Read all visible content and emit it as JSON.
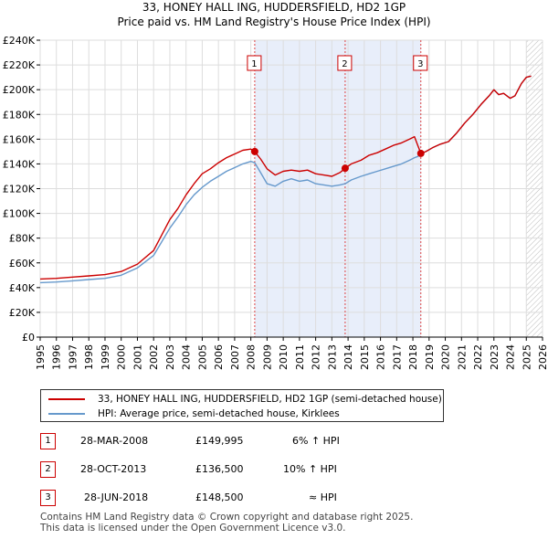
{
  "chart_data": {
    "type": "line",
    "title": "33, HONEY HALL ING, HUDDERSFIELD, HD2 1GP",
    "subtitle": "Price paid vs. HM Land Registry's House Price Index (HPI)",
    "xlim": [
      1995,
      2026
    ],
    "ylim": [
      0,
      240000
    ],
    "x_ticks": [
      "1995",
      "1996",
      "1997",
      "1998",
      "1999",
      "2000",
      "2001",
      "2002",
      "2003",
      "2004",
      "2005",
      "2006",
      "2007",
      "2008",
      "2009",
      "2010",
      "2011",
      "2012",
      "2013",
      "2014",
      "2015",
      "2016",
      "2017",
      "2018",
      "2019",
      "2020",
      "2021",
      "2022",
      "2023",
      "2024",
      "2025",
      "2026"
    ],
    "y_ticks": [
      {
        "value": 0,
        "label": "£0"
      },
      {
        "value": 20000,
        "label": "£20K"
      },
      {
        "value": 40000,
        "label": "£40K"
      },
      {
        "value": 60000,
        "label": "£60K"
      },
      {
        "value": 80000,
        "label": "£80K"
      },
      {
        "value": 100000,
        "label": "£100K"
      },
      {
        "value": 120000,
        "label": "£120K"
      },
      {
        "value": 140000,
        "label": "£140K"
      },
      {
        "value": 160000,
        "label": "£160K"
      },
      {
        "value": 180000,
        "label": "£180K"
      },
      {
        "value": 200000,
        "label": "£200K"
      },
      {
        "value": 220000,
        "label": "£220K"
      },
      {
        "value": 240000,
        "label": "£240K"
      }
    ],
    "grid": true,
    "shaded_regions": [
      [
        2008.24,
        2013.82
      ],
      [
        2013.82,
        2018.49
      ]
    ],
    "hatched_after": 2025.0,
    "series": [
      {
        "name": "33, HONEY HALL ING, HUDDERSFIELD, HD2 1GP (semi-detached house)",
        "color": "#cc0000",
        "points": [
          [
            1995.0,
            47000
          ],
          [
            1996.0,
            47500
          ],
          [
            1997.0,
            48500
          ],
          [
            1998.0,
            49500
          ],
          [
            1999.0,
            50500
          ],
          [
            2000.0,
            53000
          ],
          [
            2001.0,
            59000
          ],
          [
            2002.0,
            70000
          ],
          [
            2003.0,
            95000
          ],
          [
            2003.5,
            104000
          ],
          [
            2004.0,
            115000
          ],
          [
            2004.5,
            124000
          ],
          [
            2005.0,
            132000
          ],
          [
            2005.5,
            136000
          ],
          [
            2006.0,
            141000
          ],
          [
            2006.5,
            145000
          ],
          [
            2007.0,
            148000
          ],
          [
            2007.5,
            151000
          ],
          [
            2008.0,
            152000
          ],
          [
            2008.24,
            149995
          ],
          [
            2008.6,
            144000
          ],
          [
            2009.0,
            136000
          ],
          [
            2009.5,
            131000
          ],
          [
            2010.0,
            134000
          ],
          [
            2010.5,
            135000
          ],
          [
            2011.0,
            134000
          ],
          [
            2011.5,
            135000
          ],
          [
            2012.0,
            132000
          ],
          [
            2012.5,
            131000
          ],
          [
            2013.0,
            130000
          ],
          [
            2013.5,
            133000
          ],
          [
            2013.82,
            136500
          ],
          [
            2014.2,
            140000
          ],
          [
            2014.8,
            143000
          ],
          [
            2015.3,
            147000
          ],
          [
            2015.8,
            149000
          ],
          [
            2016.3,
            152000
          ],
          [
            2016.8,
            155000
          ],
          [
            2017.3,
            157000
          ],
          [
            2017.8,
            160000
          ],
          [
            2018.1,
            162000
          ],
          [
            2018.3,
            155000
          ],
          [
            2018.49,
            148500
          ],
          [
            2018.8,
            150000
          ],
          [
            2019.2,
            153000
          ],
          [
            2019.7,
            156000
          ],
          [
            2020.2,
            158000
          ],
          [
            2020.7,
            165000
          ],
          [
            2021.2,
            173000
          ],
          [
            2021.7,
            180000
          ],
          [
            2022.2,
            188000
          ],
          [
            2022.7,
            195000
          ],
          [
            2023.0,
            200000
          ],
          [
            2023.3,
            196000
          ],
          [
            2023.6,
            197000
          ],
          [
            2024.0,
            193000
          ],
          [
            2024.3,
            195000
          ],
          [
            2024.7,
            205000
          ],
          [
            2025.0,
            210000
          ],
          [
            2025.3,
            211000
          ]
        ]
      },
      {
        "name": "HPI: Average price, semi-detached house, Kirklees",
        "color": "#6699cc",
        "points": [
          [
            1995.0,
            44000
          ],
          [
            1996.0,
            44500
          ],
          [
            1997.0,
            45500
          ],
          [
            1998.0,
            46500
          ],
          [
            1999.0,
            47500
          ],
          [
            2000.0,
            50000
          ],
          [
            2001.0,
            56000
          ],
          [
            2002.0,
            66000
          ],
          [
            2003.0,
            88000
          ],
          [
            2003.5,
            97000
          ],
          [
            2004.0,
            107000
          ],
          [
            2004.5,
            115000
          ],
          [
            2005.0,
            121000
          ],
          [
            2005.5,
            126000
          ],
          [
            2006.0,
            130000
          ],
          [
            2006.5,
            134000
          ],
          [
            2007.0,
            137000
          ],
          [
            2007.5,
            140000
          ],
          [
            2008.0,
            142000
          ],
          [
            2008.24,
            141000
          ],
          [
            2008.6,
            133000
          ],
          [
            2009.0,
            124000
          ],
          [
            2009.5,
            122000
          ],
          [
            2010.0,
            126000
          ],
          [
            2010.5,
            128000
          ],
          [
            2011.0,
            126000
          ],
          [
            2011.5,
            127000
          ],
          [
            2012.0,
            124000
          ],
          [
            2012.5,
            123000
          ],
          [
            2013.0,
            122000
          ],
          [
            2013.5,
            123000
          ],
          [
            2013.82,
            124000
          ],
          [
            2014.2,
            127000
          ],
          [
            2014.8,
            130000
          ],
          [
            2015.3,
            132000
          ],
          [
            2015.8,
            134000
          ],
          [
            2016.3,
            136000
          ],
          [
            2016.8,
            138000
          ],
          [
            2017.3,
            140000
          ],
          [
            2017.8,
            143000
          ],
          [
            2018.1,
            145000
          ],
          [
            2018.3,
            146000
          ],
          [
            2018.49,
            148000
          ],
          [
            2018.8,
            150000
          ],
          [
            2019.2,
            153000
          ],
          [
            2019.7,
            156000
          ],
          [
            2020.2,
            158000
          ],
          [
            2020.7,
            165000
          ],
          [
            2021.2,
            173000
          ],
          [
            2021.7,
            180000
          ],
          [
            2022.2,
            188000
          ],
          [
            2022.7,
            195000
          ],
          [
            2023.0,
            200000
          ],
          [
            2023.3,
            196000
          ],
          [
            2023.6,
            197000
          ],
          [
            2024.0,
            193000
          ],
          [
            2024.3,
            195000
          ],
          [
            2024.7,
            205000
          ],
          [
            2025.0,
            210000
          ],
          [
            2025.3,
            211000
          ]
        ]
      }
    ],
    "sale_points": [
      {
        "id": "1",
        "x": 2008.24,
        "y": 149995
      },
      {
        "id": "2",
        "x": 2013.82,
        "y": 136500
      },
      {
        "id": "3",
        "x": 2018.49,
        "y": 148500
      }
    ]
  },
  "legend": {
    "property_label": "33, HONEY HALL ING, HUDDERSFIELD, HD2 1GP (semi-detached house)",
    "hpi_label": "HPI: Average price, semi-detached house, Kirklees",
    "property_color": "#cc0000",
    "hpi_color": "#6699cc"
  },
  "sales": [
    {
      "id": "1",
      "date": "28-MAR-2008",
      "price": "£149,995",
      "hpi": "6% ↑ HPI"
    },
    {
      "id": "2",
      "date": "28-OCT-2013",
      "price": "£136,500",
      "hpi": "10% ↑ HPI"
    },
    {
      "id": "3",
      "date": "28-JUN-2018",
      "price": "£148,500",
      "hpi": "≈ HPI"
    }
  ],
  "footer": {
    "line1": "Contains HM Land Registry data © Crown copyright and database right 2025.",
    "line2": "This data is licensed under the Open Government Licence v3.0."
  }
}
